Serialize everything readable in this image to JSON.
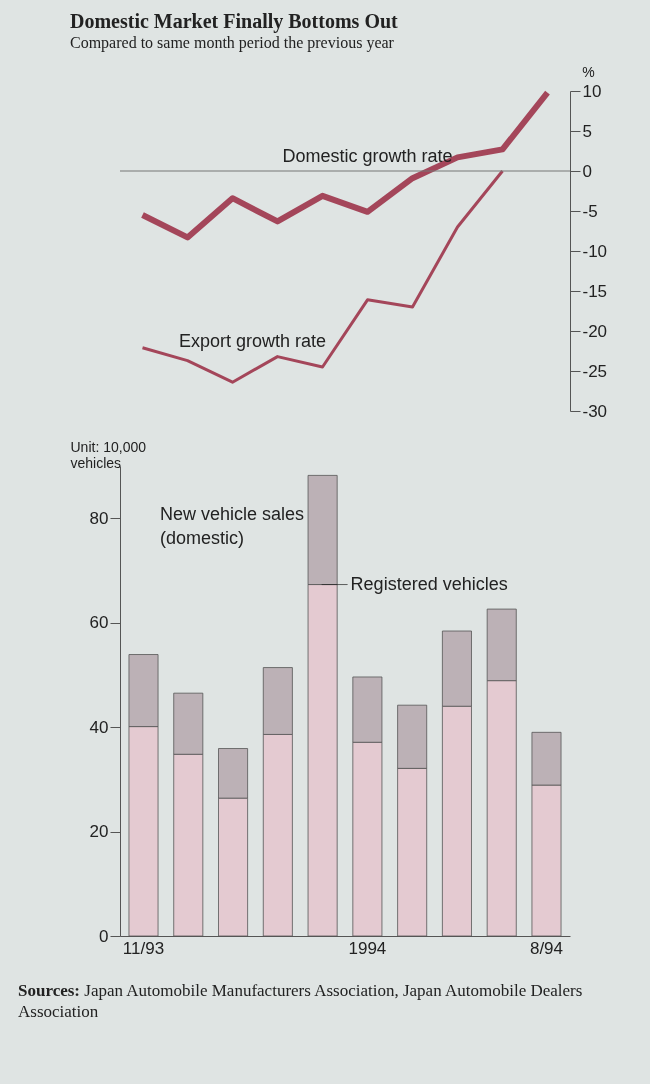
{
  "chart_data": [
    {
      "type": "line",
      "title": "Domestic Market Finally Bottoms Out",
      "subtitle": "Compared to same month period the previous year",
      "ylabel": "%",
      "categories": [
        null,
        null,
        null,
        null,
        null,
        null,
        null,
        null,
        null,
        null
      ],
      "series": [
        {
          "name": "Domestic growth rate",
          "color": "#a4465a",
          "values": [
            -5.5,
            -8.3,
            -3.4,
            -6.3,
            -3.1,
            -5.1,
            -0.9,
            1.7,
            2.7,
            9.8
          ]
        },
        {
          "name": "Export growth rate",
          "color": "#a4465a",
          "values": [
            -22.1,
            -23.7,
            -26.4,
            -23.2,
            -24.5,
            -16.1,
            -17.0,
            -7.0,
            0,
            null
          ]
        }
      ],
      "ylim": [
        -30,
        10
      ],
      "yticks": [
        -30,
        -25,
        -20,
        -15,
        -10,
        -5,
        0,
        5,
        10
      ],
      "tick_labels": "y",
      "ref_lines": [
        {
          "axis": "y",
          "value": 0,
          "color": "#777777"
        }
      ]
    },
    {
      "type": "bar",
      "stacked": true,
      "ylabel": "Unit: 10,000 vehicles",
      "categories": [
        "11/93",
        null,
        null,
        null,
        null,
        "1994",
        null,
        null,
        null,
        "8/94"
      ],
      "series": [
        {
          "name": "Registered vehicles",
          "color": "#e4cad1",
          "values": [
            40.1,
            34.8,
            26.4,
            38.6,
            67.3,
            37.1,
            32.1,
            44.0,
            48.9,
            28.9
          ]
        },
        {
          "color": "#bcb1b6",
          "values": [
            13.8,
            11.7,
            9.5,
            12.8,
            20.9,
            12.5,
            12.1,
            14.4,
            13.7,
            10.1
          ]
        }
      ],
      "ylim": [
        0,
        90
      ],
      "yticks": [
        0,
        20,
        40,
        60,
        80
      ],
      "annotations": [
        "New vehicle sales (domestic)",
        "Sources: Japan Automobile Manufacturers Association, Japan Automobile Dealers Association"
      ]
    }
  ]
}
